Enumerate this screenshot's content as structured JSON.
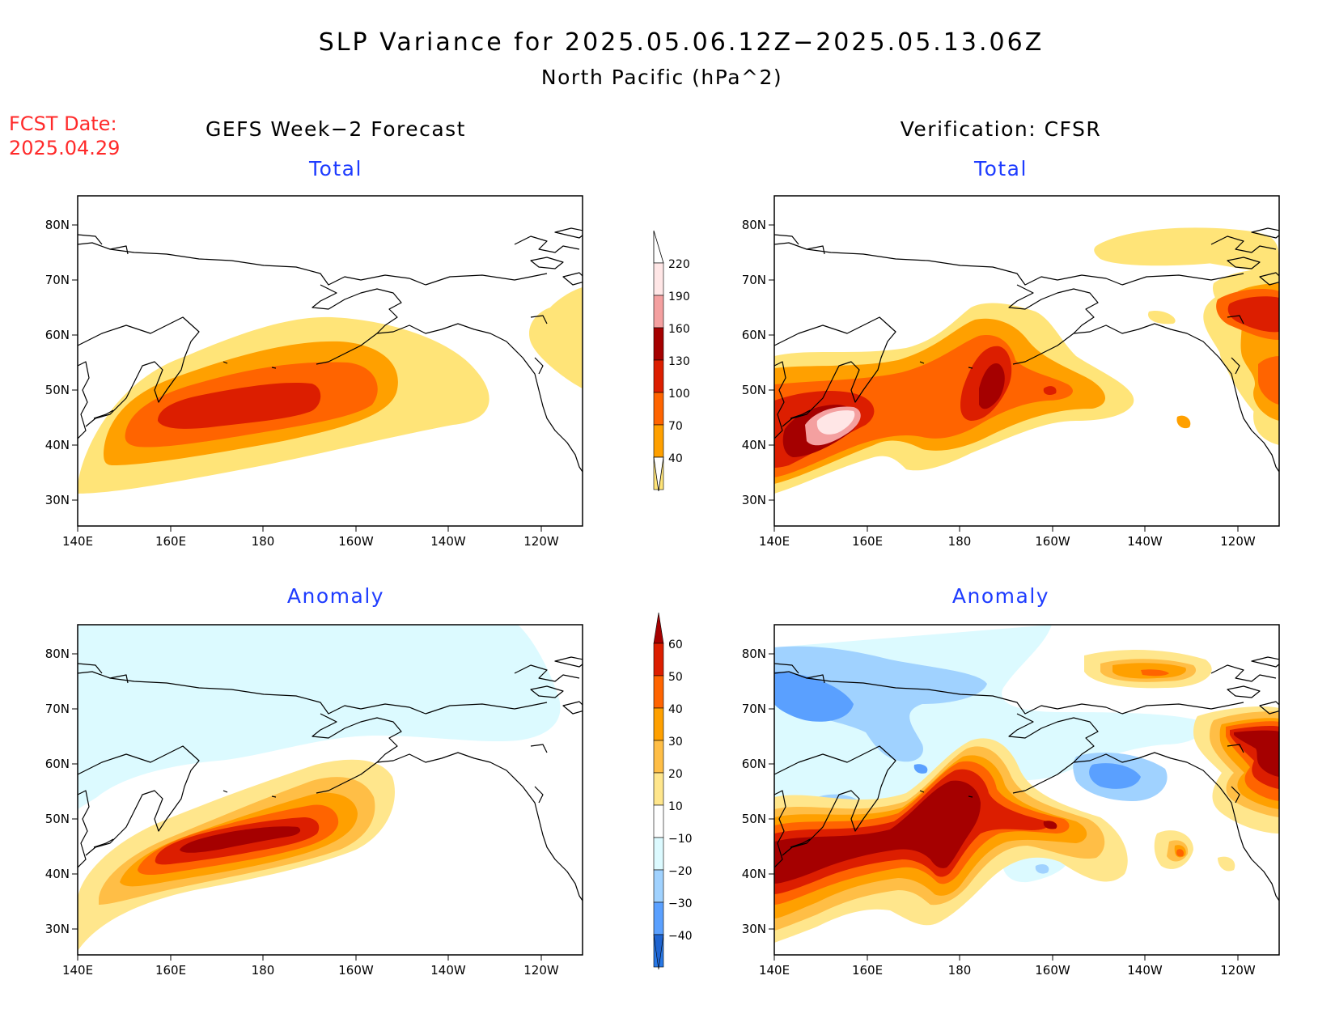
{
  "header": {
    "title": "SLP Variance for 2025.05.06.12Z−2025.05.13.06Z",
    "subtitle": "North Pacific (hPa^2)",
    "fcst_label": "FCST Date:",
    "fcst_value": "2025.04.29"
  },
  "columns": {
    "left": "GEFS Week−2 Forecast",
    "right": "Verification: CFSR"
  },
  "panels": {
    "total": "Total",
    "anomaly": "Anomaly"
  },
  "axes": {
    "lat_labels": [
      "80N",
      "70N",
      "60N",
      "50N",
      "40N",
      "30N"
    ],
    "lon_labels": [
      "140E",
      "160E",
      "180",
      "160W",
      "140W",
      "120W"
    ]
  },
  "colorbars": {
    "total": {
      "labels": [
        "220",
        "190",
        "160",
        "130",
        "100",
        "70",
        "40"
      ],
      "colors": [
        "#ffe6e6",
        "#f4a0a0",
        "#a50000",
        "#dc1e00",
        "#ff6400",
        "#ffa000",
        "#ffe478"
      ]
    },
    "anomaly": {
      "labels": [
        "60",
        "50",
        "40",
        "30",
        "20",
        "10",
        "−10",
        "−20",
        "−30",
        "−40"
      ],
      "colors_pos": [
        "#a50000",
        "#dc1e00",
        "#ff6400",
        "#ffa000",
        "#ffbe46",
        "#ffe68c"
      ],
      "color_zero": "#ffffff",
      "colors_neg": [
        "#dcfaff",
        "#a0d2ff",
        "#5aa0ff",
        "#2878e6",
        "#1e64d2"
      ]
    }
  }
}
